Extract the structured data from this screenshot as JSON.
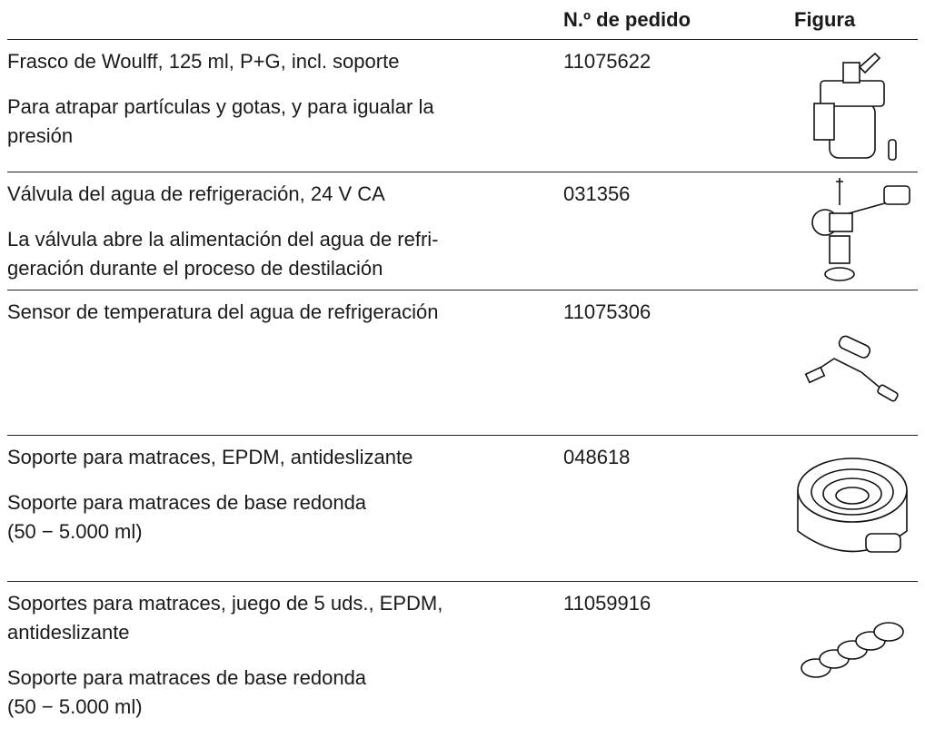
{
  "header": {
    "description": "",
    "order_number": "N.º de pedido",
    "figure": "Figura"
  },
  "rows": [
    {
      "paragraphs": [
        [
          "Frasco de Woulff, 125 ml, P+G, incl. soporte"
        ],
        [
          "Para atrapar partículas y gotas, y para igualar la",
          "presión"
        ]
      ],
      "order_number": "11075622"
    },
    {
      "paragraphs": [
        [
          "Válvula del agua de refrigeración, 24 V CA"
        ],
        [
          "La válvula abre la alimentación del agua de refri-",
          "geración durante el proceso de destilación"
        ]
      ],
      "order_number": "031356"
    },
    {
      "paragraphs": [
        [
          "Sensor de temperatura del agua de refrigeración"
        ]
      ],
      "order_number": "11075306"
    },
    {
      "paragraphs": [
        [
          "Soporte para matraces, EPDM, antideslizante"
        ],
        [
          "Soporte para matraces de base redonda",
          "(50 − 5.000 ml)"
        ]
      ],
      "order_number": "048618"
    },
    {
      "paragraphs": [
        [
          "Soportes para matraces, juego de 5 uds., EPDM,",
          "antideslizante"
        ],
        [
          "Soporte para matraces de base redonda",
          "(50 − 5.000 ml)"
        ]
      ],
      "order_number": "11059916"
    }
  ]
}
